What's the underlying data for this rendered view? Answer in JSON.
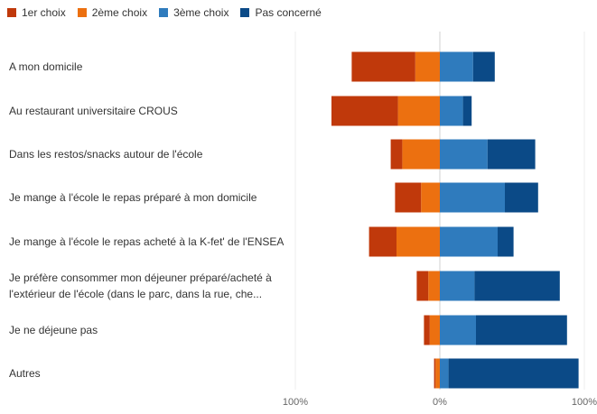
{
  "chart_data": {
    "type": "bar",
    "orientation": "horizontal-diverging",
    "series": [
      {
        "name": "1er choix",
        "color": "#c0390b",
        "values": [
          44,
          46,
          8,
          18,
          19,
          8,
          4,
          1
        ]
      },
      {
        "name": "2ème choix",
        "color": "#ec7010",
        "values": [
          17,
          29,
          26,
          13,
          30,
          8,
          7,
          3
        ]
      },
      {
        "name": "3ème choix",
        "color": "#2f7bbd",
        "values": [
          23,
          16,
          33,
          45,
          40,
          24,
          25,
          6
        ]
      },
      {
        "name": "Pas concerné",
        "color": "#0b4a87",
        "values": [
          15,
          6,
          33,
          23,
          11,
          59,
          63,
          90
        ]
      }
    ],
    "categories": [
      "A mon domicile",
      "Au restaurant universitaire CROUS",
      "Dans les restos/snacks autour de l'école",
      "Je mange à l'école le repas préparé à mon domicile",
      "Je mange à l'école le repas acheté à la K-fet' de l'ENSEA",
      "Je préfère consommer mon déjeuner préparé/acheté à l'extérieur de l'école (dans le parc, dans la rue, che...",
      "Je ne déjeune pas",
      "Autres"
    ],
    "xlim": [
      -100,
      100
    ],
    "x_ticks": [
      "100%",
      "0%",
      "100%"
    ],
    "legend_position": "top-left",
    "grid": false
  }
}
